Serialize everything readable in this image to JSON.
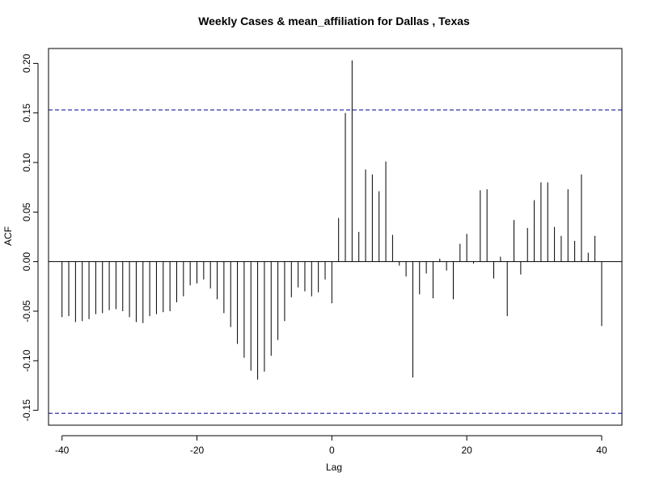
{
  "chart_data": {
    "type": "bar",
    "title": "Weekly Cases & mean_affiliation for Dallas , Texas",
    "xlabel": "Lag",
    "ylabel": "ACF",
    "xlim": [
      -42,
      43
    ],
    "ylim": [
      -0.165,
      0.215
    ],
    "x_ticks": [
      -40,
      -20,
      0,
      20,
      40
    ],
    "y_ticks": [
      -0.15,
      -0.1,
      -0.05,
      0.0,
      0.05,
      0.1,
      0.15,
      0.2
    ],
    "x_tick_labels": [
      "-40",
      "-20",
      "0",
      "20",
      "40"
    ],
    "y_tick_labels": [
      "-0.15",
      "-0.10",
      "-0.05",
      "0.00",
      "0.05",
      "0.10",
      "0.15",
      "0.20"
    ],
    "confidence_bounds": [
      0.153,
      -0.153
    ],
    "bound_color": "#00008b",
    "bar_color": "#000000",
    "lags": [
      -40,
      -39,
      -38,
      -37,
      -36,
      -35,
      -34,
      -33,
      -32,
      -31,
      -30,
      -29,
      -28,
      -27,
      -26,
      -25,
      -24,
      -23,
      -22,
      -21,
      -20,
      -19,
      -18,
      -17,
      -16,
      -15,
      -14,
      -13,
      -12,
      -11,
      -10,
      -9,
      -8,
      -7,
      -6,
      -5,
      -4,
      -3,
      -2,
      -1,
      0,
      1,
      2,
      3,
      4,
      5,
      6,
      7,
      8,
      9,
      10,
      11,
      12,
      13,
      14,
      15,
      16,
      17,
      18,
      19,
      20,
      21,
      22,
      23,
      24,
      25,
      26,
      27,
      28,
      29,
      30,
      31,
      32,
      33,
      34,
      35,
      36,
      37,
      38,
      39,
      40
    ],
    "values": [
      -0.056,
      -0.055,
      -0.061,
      -0.06,
      -0.058,
      -0.053,
      -0.052,
      -0.049,
      -0.048,
      -0.05,
      -0.056,
      -0.061,
      -0.062,
      -0.055,
      -0.053,
      -0.051,
      -0.05,
      -0.041,
      -0.035,
      -0.024,
      -0.022,
      -0.018,
      -0.027,
      -0.038,
      -0.052,
      -0.066,
      -0.083,
      -0.097,
      -0.11,
      -0.119,
      -0.111,
      -0.095,
      -0.079,
      -0.06,
      -0.036,
      -0.026,
      -0.03,
      -0.035,
      -0.031,
      -0.018,
      -0.042,
      0.044,
      0.15,
      0.203,
      0.03,
      0.093,
      0.088,
      0.071,
      0.101,
      0.027,
      -0.004,
      -0.015,
      -0.117,
      -0.033,
      -0.012,
      -0.037,
      0.003,
      -0.009,
      -0.038,
      0.018,
      0.028,
      -0.002,
      0.072,
      0.073,
      -0.017,
      0.005,
      -0.055,
      0.042,
      -0.013,
      0.034,
      0.062,
      0.08,
      0.08,
      0.035,
      0.026,
      0.073,
      0.021,
      0.088,
      0.009,
      0.026,
      -0.065
    ]
  }
}
